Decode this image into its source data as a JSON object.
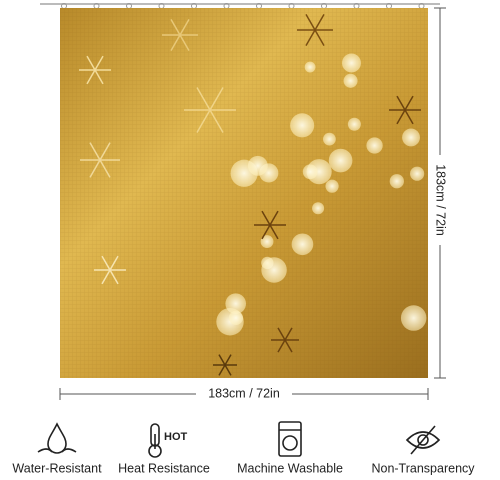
{
  "dimensions": {
    "width": "183cm / 72in",
    "height": "183cm / 72in"
  },
  "features": [
    {
      "label": "Water-Resistant"
    },
    {
      "label": "Heat Resistance",
      "badge": "HOT"
    },
    {
      "label": "Machine Washable"
    },
    {
      "label": "Non-Transparency"
    }
  ]
}
